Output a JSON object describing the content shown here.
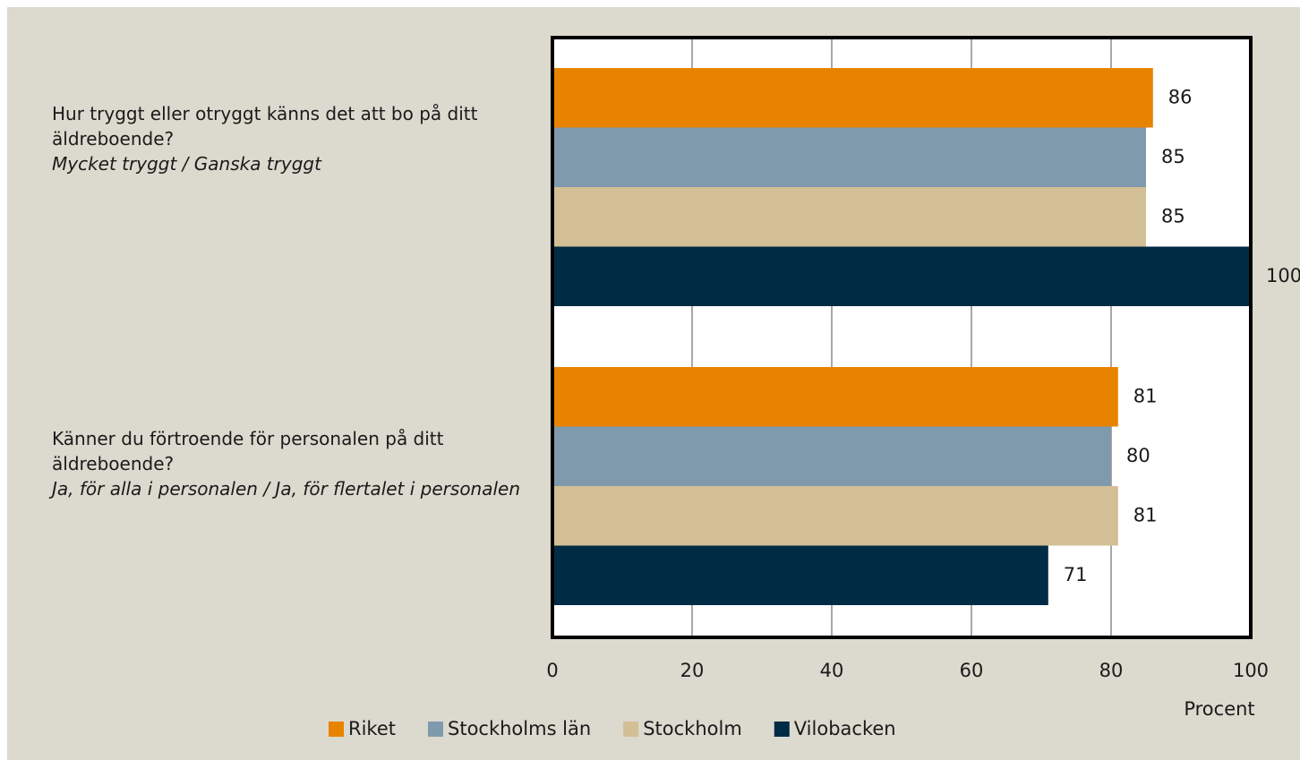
{
  "chart_data": {
    "type": "barh",
    "categories": [
      "Hur tryggt eller otryggt känns det att bo på ditt äldreboende?",
      "Känner du förtroende för personalen på ditt äldreboende?"
    ],
    "category_notes": [
      "Mycket tryggt / Ganska tryggt",
      "Ja, för alla i personalen / Ja, för flertalet i personalen"
    ],
    "series": [
      {
        "name": "Riket",
        "color": "#e88300",
        "values": [
          86,
          81
        ]
      },
      {
        "name": "Stockholms län",
        "color": "#7f9aac",
        "values": [
          85,
          80
        ]
      },
      {
        "name": "Stockholm",
        "color": "#d3bf95",
        "values": [
          85,
          81
        ]
      },
      {
        "name": "Vilobacken",
        "color": "#002b45",
        "values": [
          100,
          71
        ]
      }
    ],
    "xlim": [
      0,
      100
    ],
    "xticks": [
      0,
      20,
      40,
      60,
      80,
      100
    ],
    "grid": true,
    "x_label": "Procent",
    "legend": "bottom"
  }
}
